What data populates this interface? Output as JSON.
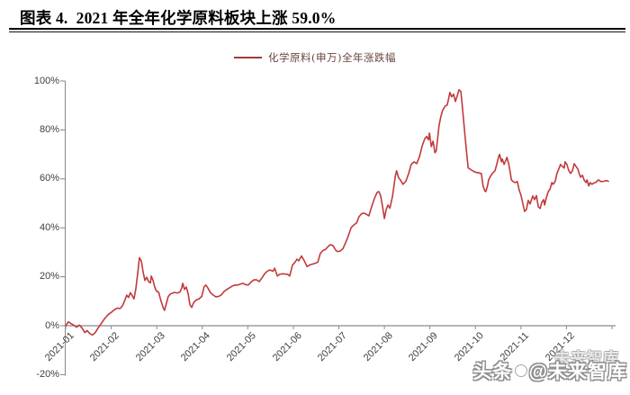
{
  "header": {
    "title": "图表 4.  2021 年全年化学原料板块上涨 59.0%"
  },
  "legend": {
    "label": "化学原料(申万)全年涨跌幅"
  },
  "watermark": {
    "ghost": "未来智库",
    "prefix": "头条",
    "suffix": "@未来智库"
  },
  "colors": {
    "series_line": "#c13a3c",
    "legend_marker": "#9f3b39",
    "axis": "#8c8c8c",
    "zero_line": "#8a8a8a",
    "tick_label": "#3f3f3f",
    "title_text": "#000000"
  },
  "chart_data": {
    "type": "line",
    "title": "2021 年全年化学原料板块上涨 59.0%",
    "xlabel": "",
    "ylabel": "",
    "grid": false,
    "legend_position": "top-center",
    "ylim": [
      -20,
      100
    ],
    "xlim_months": [
      0,
      12.1
    ],
    "y_tick_values": [
      100,
      80,
      60,
      40,
      20,
      0,
      -20
    ],
    "y_tick_labels": [
      "100%",
      "80%",
      "60%",
      "40%",
      "20%",
      "0%",
      "-20%"
    ],
    "x_ticks": [
      "2021-01",
      "2021-02",
      "2021-03",
      "2021-04",
      "2021-05",
      "2021-06",
      "2021-07",
      "2021-08",
      "2021-09",
      "2021-10",
      "2021-11",
      "2021-12"
    ],
    "series": [
      {
        "name": "化学原料(申万)全年涨跌幅",
        "unit": "%",
        "points": [
          [
            0,
            0
          ],
          [
            0.06,
            1.6
          ],
          [
            0.12,
            0.8
          ],
          [
            0.18,
            0.2
          ],
          [
            0.24,
            -0.6
          ],
          [
            0.3,
            0.3
          ],
          [
            0.36,
            -1
          ],
          [
            0.42,
            -2.8
          ],
          [
            0.47,
            -2
          ],
          [
            0.53,
            -3.2
          ],
          [
            0.59,
            -3.8
          ],
          [
            0.65,
            -2.8
          ],
          [
            0.71,
            -1
          ],
          [
            0.77,
            0.6
          ],
          [
            0.85,
            2.8
          ],
          [
            0.93,
            4.5
          ],
          [
            1.01,
            5.6
          ],
          [
            1.07,
            6.5
          ],
          [
            1.13,
            7.2
          ],
          [
            1.19,
            7
          ],
          [
            1.25,
            8.2
          ],
          [
            1.3,
            10.5
          ],
          [
            1.34,
            12.5
          ],
          [
            1.38,
            11.5
          ],
          [
            1.42,
            13.5
          ],
          [
            1.46,
            12.3
          ],
          [
            1.5,
            11
          ],
          [
            1.54,
            15
          ],
          [
            1.58,
            21
          ],
          [
            1.62,
            27.8
          ],
          [
            1.66,
            26.5
          ],
          [
            1.7,
            22
          ],
          [
            1.74,
            18.5
          ],
          [
            1.78,
            19.8
          ],
          [
            1.82,
            18
          ],
          [
            1.86,
            17.5
          ],
          [
            1.88,
            20.3
          ],
          [
            1.92,
            18.5
          ],
          [
            1.96,
            15.5
          ],
          [
            2,
            14
          ],
          [
            2.04,
            13.8
          ],
          [
            2.08,
            11
          ],
          [
            2.14,
            7.5
          ],
          [
            2.17,
            6.3
          ],
          [
            2.21,
            9
          ],
          [
            2.25,
            11.8
          ],
          [
            2.29,
            12.8
          ],
          [
            2.33,
            13.2
          ],
          [
            2.39,
            13.6
          ],
          [
            2.45,
            13.4
          ],
          [
            2.51,
            13.8
          ],
          [
            2.55,
            15.5
          ],
          [
            2.57,
            17.3
          ],
          [
            2.61,
            14.8
          ],
          [
            2.65,
            15.8
          ],
          [
            2.69,
            13
          ],
          [
            2.73,
            8.5
          ],
          [
            2.77,
            7.5
          ],
          [
            2.81,
            9.4
          ],
          [
            2.87,
            10.6
          ],
          [
            2.93,
            11
          ],
          [
            2.99,
            12
          ],
          [
            3.04,
            16
          ],
          [
            3.08,
            16.6
          ],
          [
            3.12,
            15.5
          ],
          [
            3.18,
            13.5
          ],
          [
            3.24,
            12.5
          ],
          [
            3.3,
            11.8
          ],
          [
            3.36,
            12
          ],
          [
            3.42,
            12.6
          ],
          [
            3.48,
            14
          ],
          [
            3.54,
            14.8
          ],
          [
            3.6,
            15.5
          ],
          [
            3.66,
            16.2
          ],
          [
            3.72,
            16.6
          ],
          [
            3.78,
            16.6
          ],
          [
            3.84,
            17
          ],
          [
            3.89,
            17.3
          ],
          [
            3.95,
            16.8
          ],
          [
            4.01,
            16.6
          ],
          [
            4.07,
            17.8
          ],
          [
            4.13,
            18.7
          ],
          [
            4.19,
            18.8
          ],
          [
            4.25,
            18
          ],
          [
            4.31,
            19.5
          ],
          [
            4.37,
            21.2
          ],
          [
            4.43,
            22.3
          ],
          [
            4.49,
            22.8
          ],
          [
            4.55,
            22.2
          ],
          [
            4.59,
            23.5
          ],
          [
            4.65,
            20.3
          ],
          [
            4.7,
            21
          ],
          [
            4.76,
            21.2
          ],
          [
            4.82,
            21.1
          ],
          [
            4.88,
            21
          ],
          [
            4.92,
            20.3
          ],
          [
            4.98,
            24.7
          ],
          [
            5.04,
            26
          ],
          [
            5.08,
            27.2
          ],
          [
            5.12,
            26.5
          ],
          [
            5.18,
            28.5
          ],
          [
            5.24,
            26.5
          ],
          [
            5.3,
            24.2
          ],
          [
            5.36,
            24.8
          ],
          [
            5.42,
            25.2
          ],
          [
            5.48,
            25.5
          ],
          [
            5.54,
            26
          ],
          [
            5.59,
            29.5
          ],
          [
            5.65,
            30.7
          ],
          [
            5.71,
            31.2
          ],
          [
            5.77,
            32.5
          ],
          [
            5.81,
            33.1
          ],
          [
            5.87,
            32.8
          ],
          [
            5.93,
            30.9
          ],
          [
            5.97,
            30.3
          ],
          [
            6.03,
            30.5
          ],
          [
            6.09,
            31.5
          ],
          [
            6.15,
            34
          ],
          [
            6.21,
            36.8
          ],
          [
            6.27,
            40.1
          ],
          [
            6.33,
            41.2
          ],
          [
            6.39,
            42
          ],
          [
            6.44,
            44.5
          ],
          [
            6.5,
            45.8
          ],
          [
            6.56,
            46
          ],
          [
            6.6,
            45.6
          ],
          [
            6.66,
            44.9
          ],
          [
            6.72,
            48.6
          ],
          [
            6.78,
            52
          ],
          [
            6.84,
            54.5
          ],
          [
            6.88,
            54.8
          ],
          [
            6.92,
            53
          ],
          [
            6.96,
            48.6
          ],
          [
            7,
            43.8
          ],
          [
            7.04,
            47.5
          ],
          [
            7.08,
            49.3
          ],
          [
            7.12,
            48
          ],
          [
            7.18,
            53
          ],
          [
            7.24,
            61
          ],
          [
            7.27,
            63.3
          ],
          [
            7.31,
            60.5
          ],
          [
            7.35,
            59.6
          ],
          [
            7.41,
            57.8
          ],
          [
            7.47,
            59
          ],
          [
            7.53,
            62
          ],
          [
            7.59,
            65.9
          ],
          [
            7.65,
            67
          ],
          [
            7.71,
            66.2
          ],
          [
            7.77,
            69
          ],
          [
            7.83,
            73.5
          ],
          [
            7.89,
            76.5
          ],
          [
            7.93,
            77.3
          ],
          [
            7.97,
            76
          ],
          [
            7.99,
            78.7
          ],
          [
            8.03,
            73.2
          ],
          [
            8.07,
            75.4
          ],
          [
            8.11,
            70.7
          ],
          [
            8.14,
            71.4
          ],
          [
            8.2,
            81.7
          ],
          [
            8.24,
            85.4
          ],
          [
            8.28,
            88
          ],
          [
            8.34,
            89.8
          ],
          [
            8.38,
            90.2
          ],
          [
            8.42,
            93.5
          ],
          [
            8.44,
            95.3
          ],
          [
            8.48,
            93.5
          ],
          [
            8.52,
            94.6
          ],
          [
            8.56,
            91.6
          ],
          [
            8.6,
            93.9
          ],
          [
            8.64,
            96.4
          ],
          [
            8.68,
            95.7
          ],
          [
            8.72,
            88
          ],
          [
            8.76,
            80
          ],
          [
            8.8,
            72
          ],
          [
            8.84,
            64.5
          ],
          [
            8.9,
            63.8
          ],
          [
            8.94,
            63.3
          ],
          [
            8.99,
            62.8
          ],
          [
            9.03,
            62.6
          ],
          [
            9.09,
            62.4
          ],
          [
            9.13,
            62.2
          ],
          [
            9.17,
            57
          ],
          [
            9.21,
            55
          ],
          [
            9.23,
            54.8
          ],
          [
            9.27,
            57.5
          ],
          [
            9.29,
            59.6
          ],
          [
            9.33,
            61
          ],
          [
            9.37,
            62.2
          ],
          [
            9.43,
            63.3
          ],
          [
            9.47,
            66
          ],
          [
            9.51,
            69
          ],
          [
            9.53,
            70
          ],
          [
            9.57,
            67
          ],
          [
            9.59,
            68.1
          ],
          [
            9.63,
            65.9
          ],
          [
            9.67,
            67.7
          ],
          [
            9.69,
            68.8
          ],
          [
            9.73,
            66.2
          ],
          [
            9.77,
            62
          ],
          [
            9.79,
            59.6
          ],
          [
            9.83,
            58.9
          ],
          [
            9.87,
            58.5
          ],
          [
            9.92,
            58.9
          ],
          [
            9.96,
            55.5
          ],
          [
            10,
            53.4
          ],
          [
            10.04,
            50
          ],
          [
            10.08,
            46.7
          ],
          [
            10.12,
            47.5
          ],
          [
            10.16,
            51.2
          ],
          [
            10.2,
            49.7
          ],
          [
            10.26,
            53
          ],
          [
            10.3,
            51.5
          ],
          [
            10.34,
            53.2
          ],
          [
            10.38,
            48.6
          ],
          [
            10.42,
            47.9
          ],
          [
            10.46,
            50.5
          ],
          [
            10.5,
            51.5
          ],
          [
            10.52,
            49.3
          ],
          [
            10.56,
            52.5
          ],
          [
            10.6,
            54.8
          ],
          [
            10.64,
            55.9
          ],
          [
            10.68,
            58.5
          ],
          [
            10.71,
            57.8
          ],
          [
            10.75,
            58.9
          ],
          [
            10.79,
            62.2
          ],
          [
            10.83,
            64
          ],
          [
            10.87,
            65.9
          ],
          [
            10.91,
            65.1
          ],
          [
            10.95,
            64.4
          ],
          [
            10.97,
            67
          ],
          [
            11.01,
            65.9
          ],
          [
            11.05,
            63.5
          ],
          [
            11.09,
            62.2
          ],
          [
            11.13,
            63.3
          ],
          [
            11.17,
            66.2
          ],
          [
            11.21,
            65.1
          ],
          [
            11.25,
            64
          ],
          [
            11.29,
            61.5
          ],
          [
            11.31,
            60.7
          ],
          [
            11.35,
            61.5
          ],
          [
            11.39,
            59.5
          ],
          [
            11.43,
            58.5
          ],
          [
            11.45,
            59.6
          ],
          [
            11.49,
            57.1
          ],
          [
            11.52,
            58.5
          ],
          [
            11.56,
            57.8
          ],
          [
            11.6,
            58.3
          ],
          [
            11.64,
            58.5
          ],
          [
            11.7,
            59.6
          ],
          [
            11.76,
            58.9
          ],
          [
            11.82,
            59
          ],
          [
            11.88,
            59.3
          ],
          [
            11.92,
            59
          ]
        ]
      }
    ]
  }
}
